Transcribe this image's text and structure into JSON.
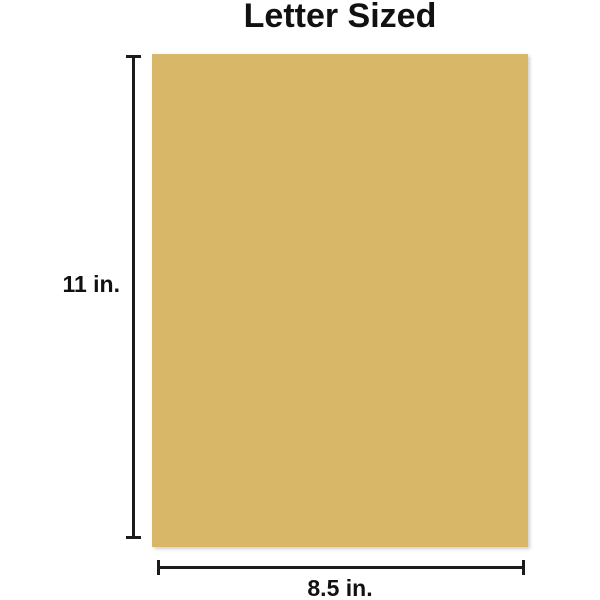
{
  "title": "Letter Sized",
  "diagram": {
    "paper_name": "letter-sized-sheet",
    "height_label": "11 in.",
    "width_label": "8.5 in."
  },
  "colors": {
    "paper": "#d9b768",
    "line": "#1b1b1b",
    "text": "#111111",
    "background": "#ffffff"
  }
}
